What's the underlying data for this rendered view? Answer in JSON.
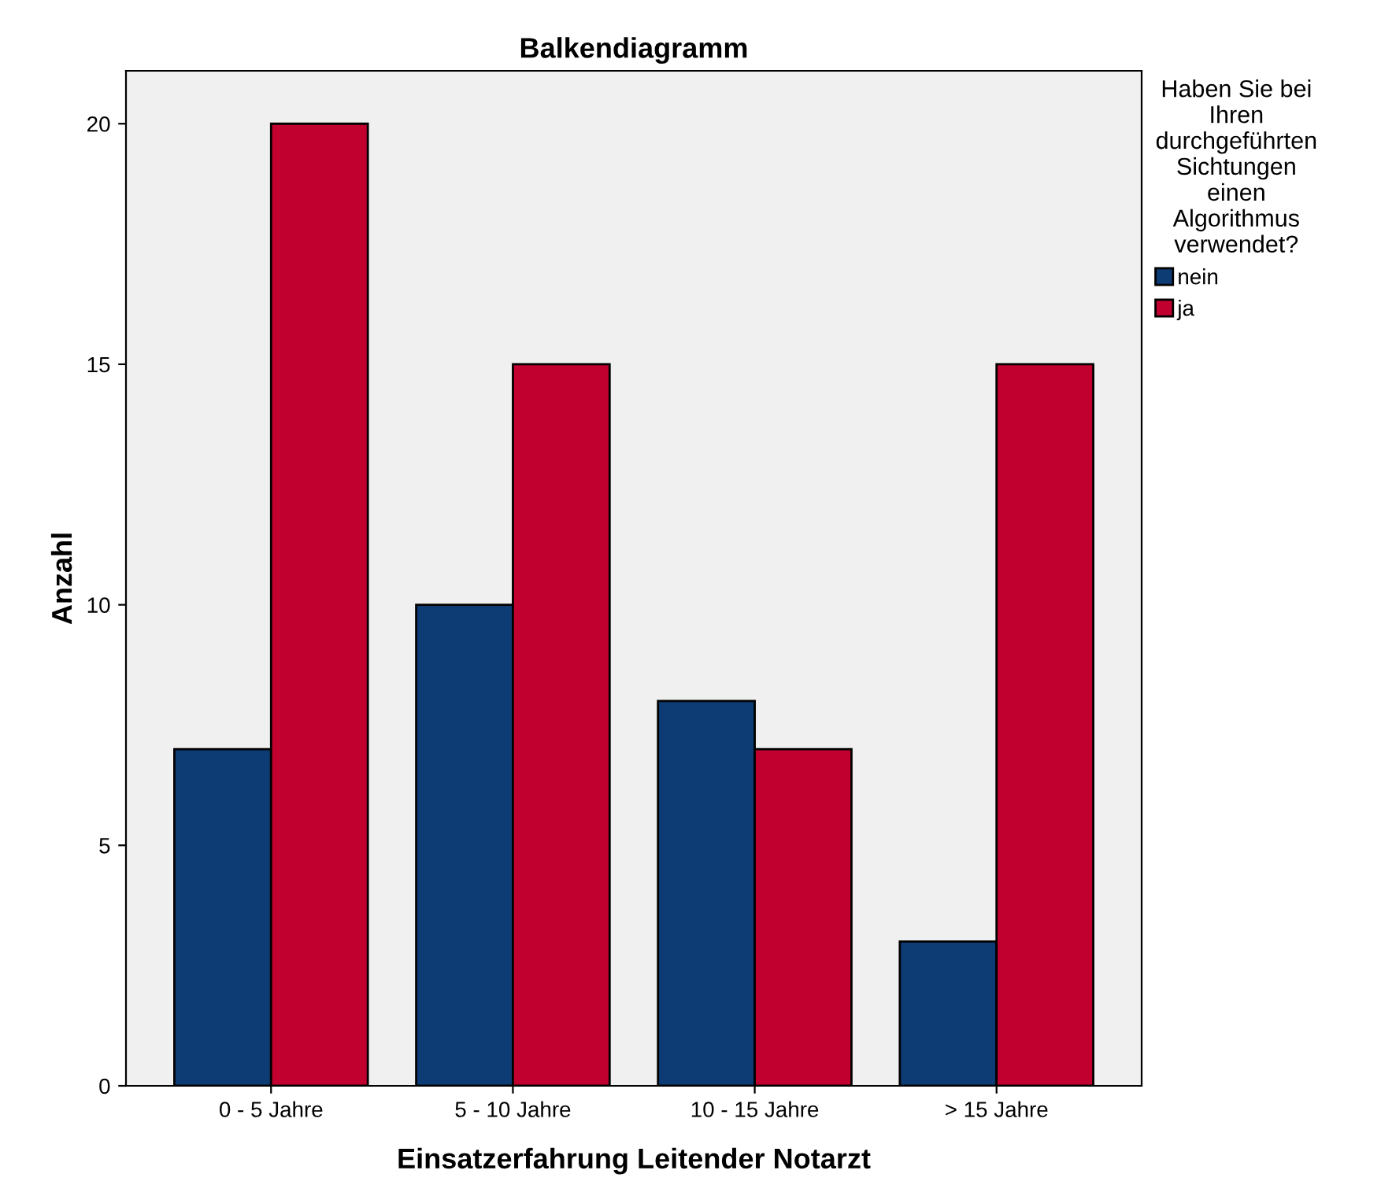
{
  "chart_data": {
    "type": "bar",
    "title": "Balkendiagramm",
    "xlabel": "Einsatzerfahrung Leitender Notarzt",
    "ylabel": "Anzahl",
    "categories": [
      "0 - 5 Jahre",
      "5 - 10 Jahre",
      "10 - 15 Jahre",
      "> 15 Jahre"
    ],
    "series": [
      {
        "name": "nein",
        "color": "#0d3b73",
        "values": [
          7,
          10,
          8,
          3
        ]
      },
      {
        "name": "ja",
        "color": "#c1002f",
        "values": [
          20,
          15,
          7,
          15
        ]
      }
    ],
    "legend_title": "Haben Sie bei\nIhren\ndurchgeführten\nSichtungen\neinen\nAlgorithmus\nverwendet?",
    "legend": "top right",
    "ylim": [
      0,
      21.1
    ],
    "yticks": [
      0,
      5,
      10,
      15,
      20
    ],
    "grid": false
  }
}
